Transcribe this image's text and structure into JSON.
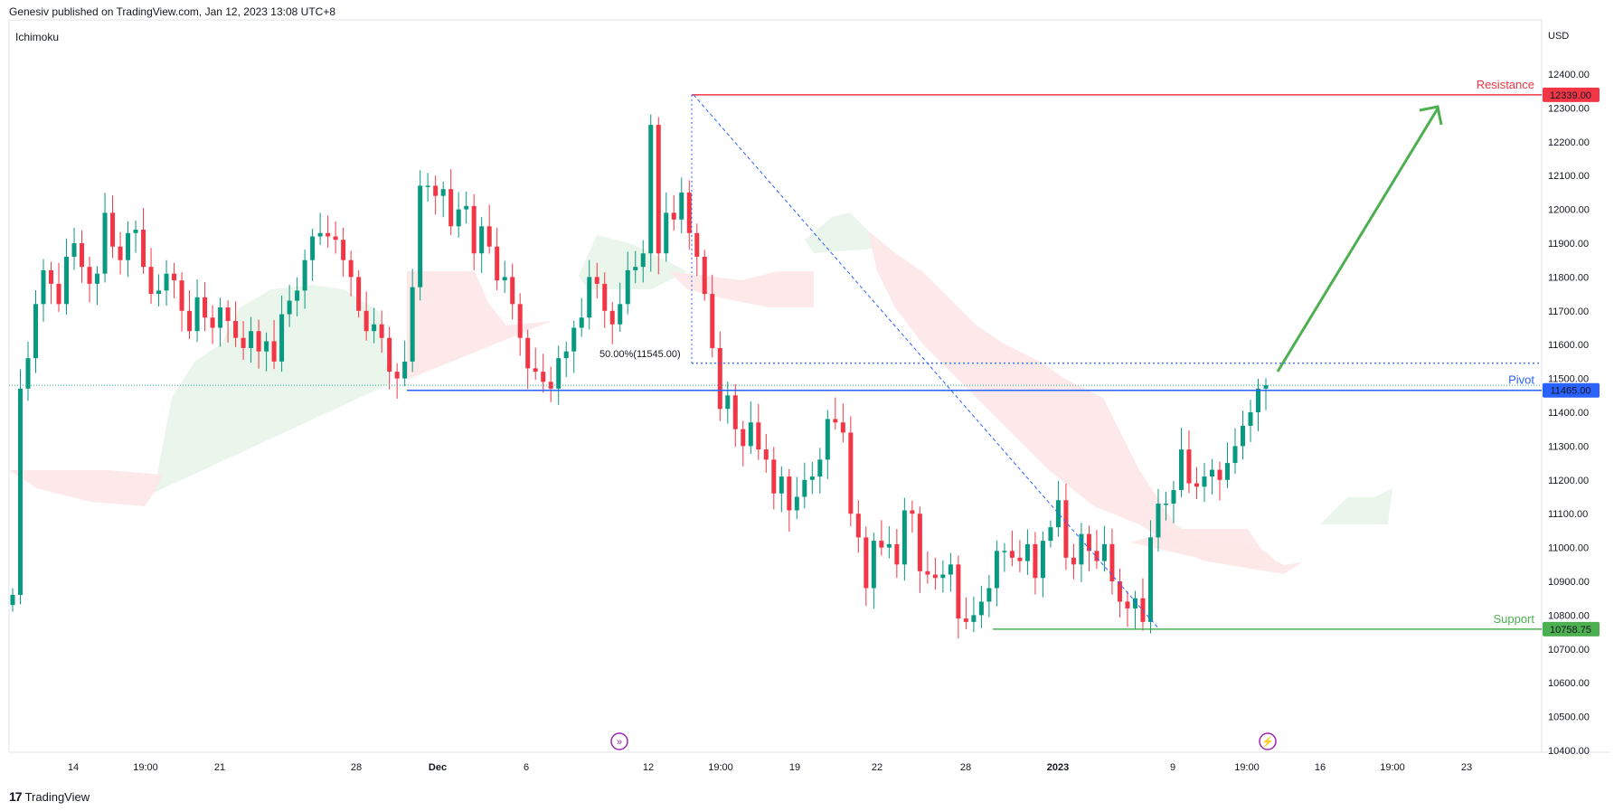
{
  "header": {
    "published": "Genesiv published on TradingView.com, Jan 12, 2023 13:08 UTC+8"
  },
  "indicator": "Ichimoku",
  "currency": "USD",
  "footer": {
    "brand": "TradingView",
    "logo": "17"
  },
  "colors": {
    "up": "#22ab94",
    "up_body": "#089981",
    "down": "#f23645",
    "resistance": "#f23645",
    "pivot": "#2962ff",
    "support": "#4caf50",
    "arrow": "#4caf50",
    "cloud_green": "#e8f5e9",
    "cloud_red": "#fde7e7"
  },
  "chart_data": {
    "type": "candlestick",
    "y_axis": {
      "min": 10400,
      "max": 12400,
      "ticks": [
        12400,
        12300,
        12200,
        12100,
        12000,
        11900,
        11800,
        11700,
        11600,
        11500,
        11400,
        11300,
        11200,
        11100,
        11000,
        10900,
        10800,
        10700,
        10600,
        10500,
        10400
      ],
      "tick_labels": [
        "12400.00",
        "12300.00",
        "12200.00",
        "12100.00",
        "12000.00",
        "11900.00",
        "11800.00",
        "11700.00",
        "11600.00",
        "11500.00",
        "11400.00",
        "11300.00",
        "11200.00",
        "11100.00",
        "11000.00",
        "10900.00",
        "10800.00",
        "10700.00",
        "10600.00",
        "10500.00",
        "10400.00"
      ]
    },
    "x_axis": {
      "tick_labels": [
        "14",
        "19:00",
        "21",
        "28",
        "Dec",
        "6",
        "12",
        "19:00",
        "19",
        "22",
        "28",
        "2023",
        "9",
        "19:00",
        "16",
        "19:00",
        "23"
      ]
    },
    "levels": [
      {
        "name": "Resistance",
        "value": 12339.0,
        "label": "12339.00"
      },
      {
        "name": "Pivot",
        "value": 11465.0,
        "label": "11465.00"
      },
      {
        "name": "Support",
        "value": 10758.75,
        "label": "10758.75"
      }
    ],
    "fib": {
      "label": "50.00%(11545.00)",
      "value": 11545.0
    },
    "close": [
      10860,
      11470,
      11560,
      11720,
      11820,
      11780,
      11720,
      11860,
      11900,
      11830,
      11780,
      11810,
      11990,
      11890,
      11850,
      11930,
      11940,
      11830,
      11750,
      11760,
      11810,
      11790,
      11700,
      11640,
      11740,
      11680,
      11650,
      11710,
      11670,
      11620,
      11590,
      11640,
      11580,
      11610,
      11550,
      11690,
      11730,
      11760,
      11850,
      11920,
      11930,
      11920,
      11910,
      11850,
      11800,
      11700,
      11640,
      11660,
      11620,
      11520,
      11500,
      11550,
      11770,
      12070,
      12070,
      12040,
      12060,
      11950,
      12000,
      12010,
      11870,
      11950,
      11890,
      11790,
      11800,
      11720,
      11620,
      11530,
      11520,
      11490,
      11470,
      11560,
      11580,
      11650,
      11680,
      11800,
      11780,
      11700,
      11660,
      11720,
      11820,
      11830,
      11870,
      12250,
      11870,
      11990,
      11970,
      12050,
      11930,
      11860,
      11750,
      11590,
      11410,
      11450,
      11350,
      11300,
      11370,
      11290,
      11260,
      11160,
      11210,
      11110,
      11150,
      11200,
      11210,
      11260,
      11380,
      11370,
      11340,
      11100,
      11030,
      10880,
      11020,
      11000,
      11010,
      10950,
      11110,
      11100,
      10930,
      10920,
      10910,
      10920,
      10950,
      10790,
      10780,
      10800,
      10840,
      10880,
      10990,
      10990,
      10970,
      10960,
      11010,
      10910,
      11020,
      11060,
      11140,
      10970,
      10950,
      11040,
      10990,
      10960,
      11010,
      10900,
      10840,
      10820,
      10850,
      10780,
      11030,
      11130,
      11130,
      11170,
      11290,
      11190,
      11180,
      11210,
      11230,
      11200,
      11250,
      11300,
      11360,
      11400,
      11470,
      11480
    ]
  }
}
